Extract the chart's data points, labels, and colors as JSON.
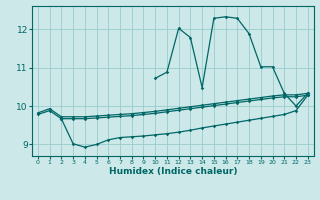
{
  "xlabel": "Humidex (Indice chaleur)",
  "bg_color": "#cce8e8",
  "grid_color": "#99cccc",
  "line_color": "#006666",
  "xlim": [
    -0.5,
    23.5
  ],
  "ylim": [
    8.7,
    12.6
  ],
  "xticks": [
    0,
    1,
    2,
    3,
    4,
    5,
    6,
    7,
    8,
    9,
    10,
    11,
    12,
    13,
    14,
    15,
    16,
    17,
    18,
    19,
    20,
    21,
    22,
    23
  ],
  "yticks": [
    9,
    10,
    11,
    12
  ],
  "line1_x": [
    0,
    1,
    2,
    3,
    4,
    5,
    6,
    7,
    8,
    9,
    10,
    11,
    12,
    13,
    14,
    15,
    16,
    17,
    18,
    19,
    20,
    21,
    22,
    23
  ],
  "line1_y": [
    9.82,
    9.93,
    9.72,
    9.72,
    9.72,
    9.74,
    9.76,
    9.78,
    9.8,
    9.83,
    9.86,
    9.9,
    9.94,
    9.98,
    10.02,
    10.06,
    10.1,
    10.14,
    10.18,
    10.22,
    10.26,
    10.29,
    10.29,
    10.33
  ],
  "line2_x": [
    0,
    1,
    2,
    3,
    4,
    5,
    6,
    7,
    8,
    9,
    10,
    11,
    12,
    13,
    14,
    15,
    16,
    17,
    18,
    19,
    20,
    21,
    22,
    23
  ],
  "line2_y": [
    9.78,
    9.88,
    9.67,
    9.67,
    9.67,
    9.69,
    9.71,
    9.73,
    9.75,
    9.78,
    9.81,
    9.85,
    9.89,
    9.93,
    9.97,
    10.01,
    10.05,
    10.09,
    10.13,
    10.17,
    10.21,
    10.24,
    10.24,
    10.28
  ],
  "line3_x": [
    2,
    3,
    4,
    5,
    6,
    7,
    8,
    9,
    10,
    11,
    12,
    13,
    14,
    15,
    16,
    17,
    18,
    19,
    20,
    21,
    22,
    23
  ],
  "line3_y": [
    9.67,
    9.02,
    8.93,
    9.0,
    9.12,
    9.18,
    9.2,
    9.22,
    9.25,
    9.28,
    9.32,
    9.37,
    9.43,
    9.48,
    9.53,
    9.58,
    9.63,
    9.68,
    9.73,
    9.78,
    9.88,
    10.28
  ],
  "line4_x": [
    10,
    11,
    12,
    13,
    14,
    15,
    16,
    17,
    18,
    19,
    20,
    21,
    22,
    23
  ],
  "line4_y": [
    10.72,
    10.88,
    12.02,
    11.78,
    10.48,
    12.28,
    12.32,
    12.28,
    11.88,
    11.02,
    11.02,
    10.33,
    10.0,
    10.33
  ]
}
